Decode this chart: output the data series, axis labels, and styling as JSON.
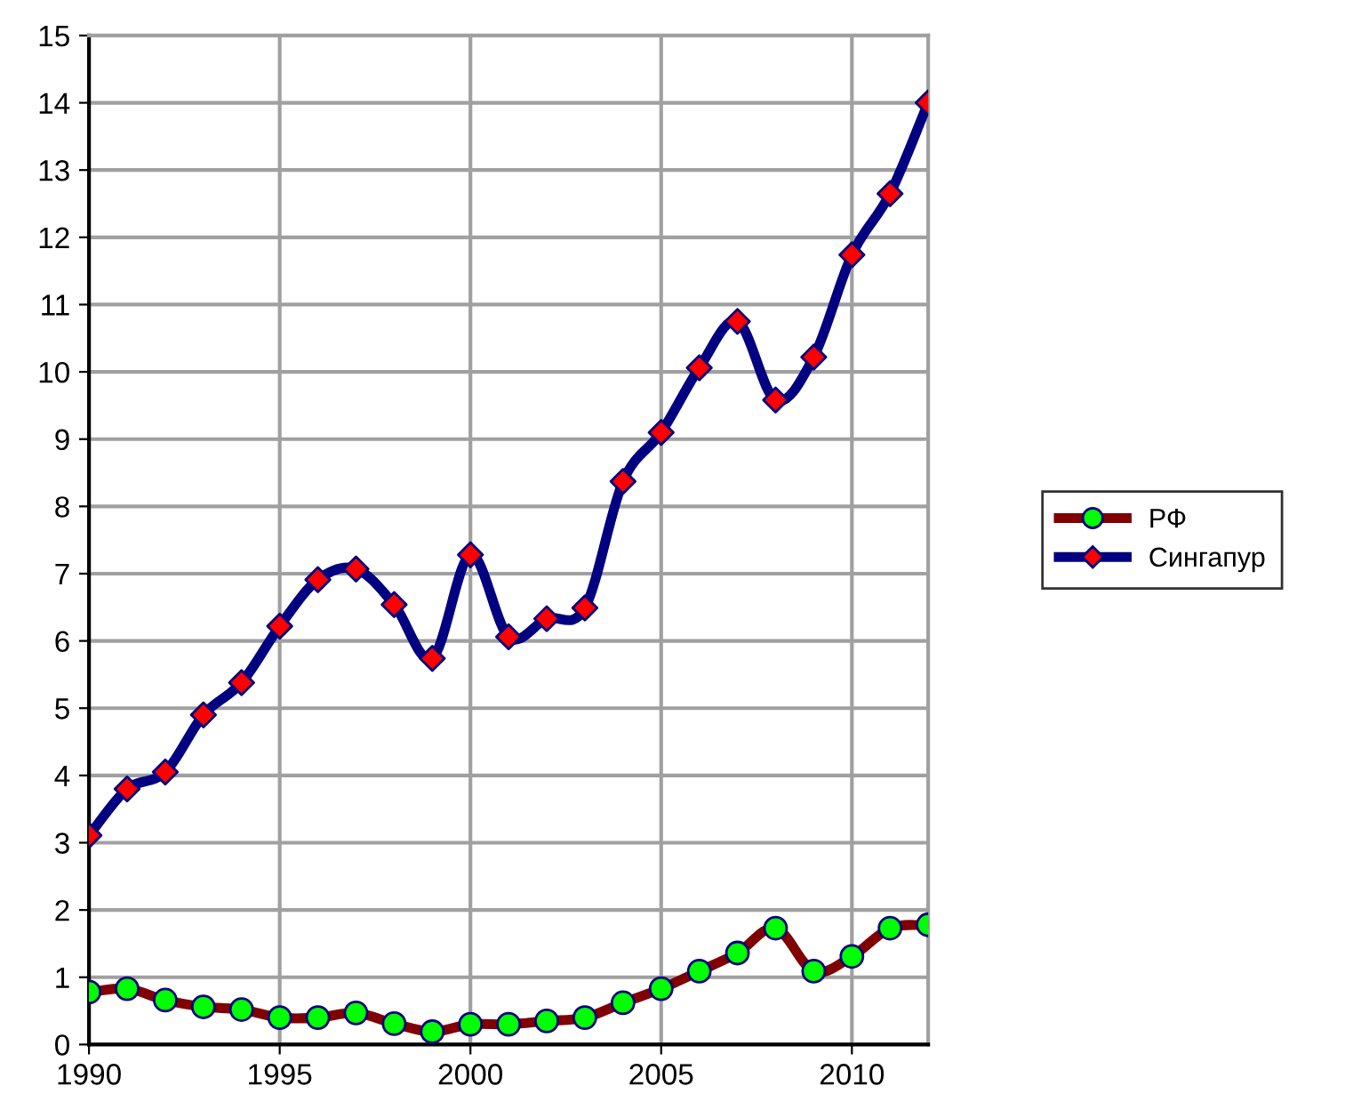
{
  "chart_data": {
    "type": "line",
    "x": [
      1990,
      1991,
      1992,
      1993,
      1994,
      1995,
      1996,
      1997,
      1998,
      1999,
      2000,
      2001,
      2002,
      2003,
      2004,
      2005,
      2006,
      2007,
      2008,
      2009,
      2010,
      2011,
      2012
    ],
    "series": [
      {
        "name": "РФ",
        "color": "#800000",
        "marker": "circle",
        "colors": [
          "#00ff00",
          "#00ff00",
          "#00ff00",
          "#00ff00",
          "#00ff00",
          "#00ff00",
          "#00ff00",
          "#00ff00",
          "#00ff00",
          "#00ff00",
          "#00ff00",
          "#00ff00",
          "#00ff00",
          "#00ff00",
          "#00ff00",
          "#00ff00",
          "#00ff00",
          "#00ff00",
          "#00ff00",
          "#00ff00",
          "#00ff00",
          "#00ff00",
          "#00ff00"
        ],
        "values": [
          0.78,
          0.83,
          0.66,
          0.56,
          0.52,
          0.4,
          0.4,
          0.47,
          0.31,
          0.19,
          0.3,
          0.3,
          0.35,
          0.4,
          0.62,
          0.83,
          1.09,
          1.36,
          1.73,
          1.09,
          1.31,
          1.73,
          1.78
        ]
      },
      {
        "name": "Сингапур",
        "color": "#000080",
        "marker": "diamond",
        "colors": [
          "#ff0000",
          "#ff0000",
          "#ff0000",
          "#ff0000",
          "#ff0000",
          "#ff0000",
          "#ff0000",
          "#ff0000",
          "#ff0000",
          "#ff0000",
          "#ff0000",
          "#ff0000",
          "#ff0000",
          "#ff0000",
          "#ff0000",
          "#ff0000",
          "#ff0000",
          "#ff0000",
          "#ff0000",
          "#ff0000",
          "#ff0000",
          "#ff0000",
          "#ff0000"
        ],
        "values": [
          3.11,
          3.8,
          4.05,
          4.9,
          5.38,
          6.22,
          6.91,
          7.07,
          6.54,
          5.74,
          7.28,
          6.06,
          6.33,
          6.49,
          8.37,
          9.1,
          10.06,
          10.75,
          9.58,
          10.22,
          11.74,
          12.65,
          14.0
        ]
      }
    ],
    "xlim": [
      1990,
      2012
    ],
    "xticks": [
      1990,
      1995,
      2000,
      2005,
      2010
    ],
    "ylim": [
      0,
      15
    ],
    "yticks": [
      0,
      1,
      2,
      3,
      4,
      5,
      6,
      7,
      8,
      9,
      10,
      11,
      12,
      13,
      14,
      15
    ],
    "grid": true,
    "legend": "right",
    "line_style": "solid"
  }
}
